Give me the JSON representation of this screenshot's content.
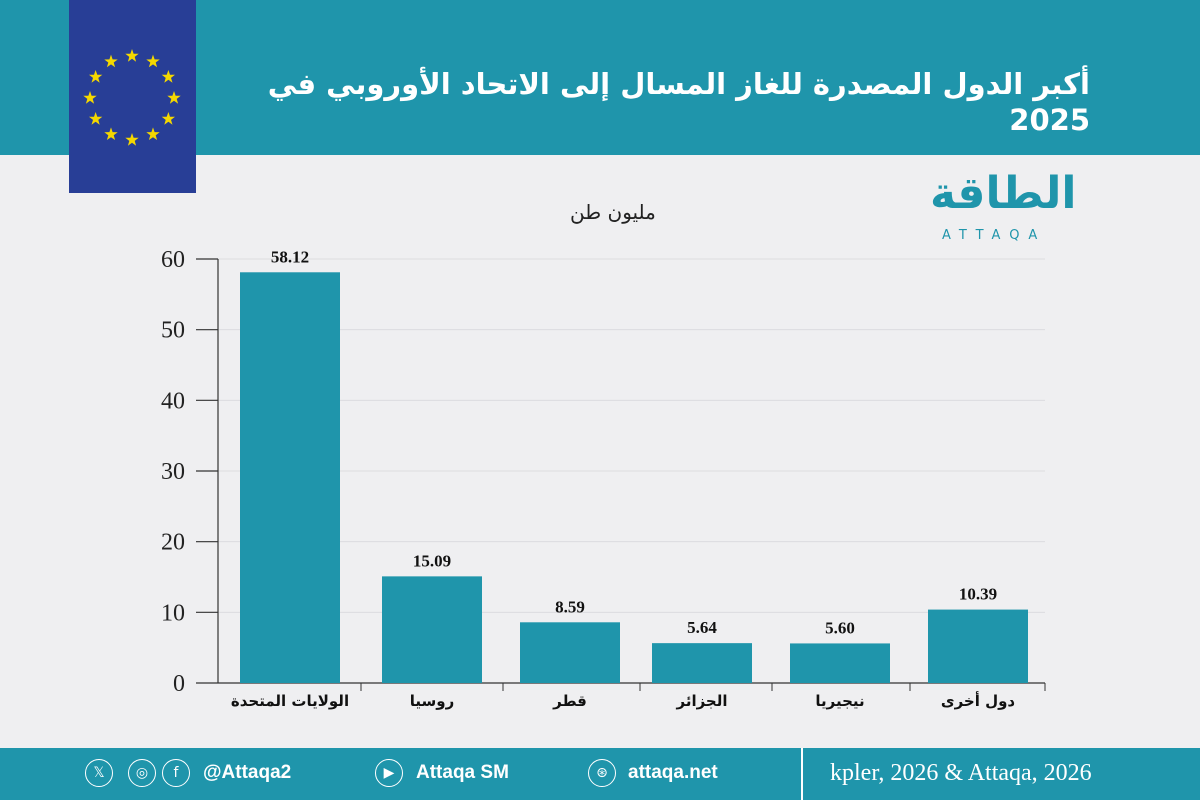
{
  "header": {
    "title": "أكبر الدول المصدرة للغاز المسال إلى الاتحاد الأوروبي في 2025"
  },
  "logo": {
    "text": "الطاقة",
    "sub": "ATTAQA"
  },
  "colors": {
    "bar": "#1f95ab",
    "header": "#1f95ab",
    "flag": "#283e96",
    "star": "#f5d800"
  },
  "chart_data": {
    "type": "bar",
    "title": "أكبر الدول المصدرة للغاز المسال إلى الاتحاد الأوروبي في 2025",
    "ylabel": "مليون طن",
    "categories": [
      "الولايات المتحدة",
      "روسيا",
      "قطر",
      "الجزائر",
      "نيجيريا",
      "دول أخرى"
    ],
    "values": [
      58.12,
      15.09,
      8.59,
      5.64,
      5.6,
      10.39
    ],
    "value_labels": [
      "58.12",
      "15.09",
      "8.59",
      "5.64",
      "5.60",
      "10.39"
    ],
    "yticks": [
      "0",
      "10",
      "20",
      "30",
      "40",
      "50",
      "60"
    ],
    "ylim": [
      0,
      60
    ],
    "grid": true
  },
  "footer": {
    "handle": "@Attaqa2",
    "youtube": "Attaqa SM",
    "site": "attaqa.net",
    "source": "kpler, 2026 & Attaqa, 2026"
  }
}
